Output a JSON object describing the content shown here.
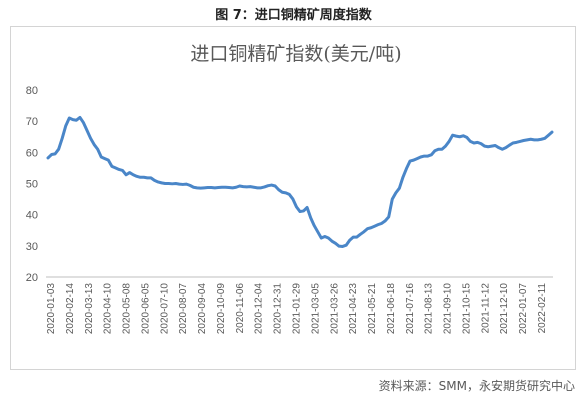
{
  "figure": {
    "caption": "图 7：进口铜精矿周度指数",
    "source": "资料来源：SMM，永安期货研究中心"
  },
  "colors": {
    "line": "#4a86c8",
    "axis": "#bfbfbf"
  },
  "chart_data": {
    "type": "line",
    "title": "进口铜精矿指数(美元/吨)",
    "xlabel": "",
    "ylabel": "",
    "ylim": [
      20,
      80
    ],
    "yticks": [
      20,
      30,
      40,
      50,
      60,
      70,
      80
    ],
    "grid": false,
    "x_tick_labels": [
      "2020-01-03",
      "2020-02-14",
      "2020-03-13",
      "2020-04-10",
      "2020-05-08",
      "2020-06-05",
      "2020-07-10",
      "2020-08-07",
      "2020-09-04",
      "2020-10-09",
      "2020-11-06",
      "2020-12-04",
      "2020-12-31",
      "2021-01-29",
      "2021-03-05",
      "2021-03-26",
      "2021-04-23",
      "2021-05-21",
      "2021-06-18",
      "2021-07-16",
      "2021-08-13",
      "2021-09-10",
      "2021-10-15",
      "2021-11-12",
      "2021-12-10",
      "2022-01-07",
      "2022-02-11"
    ],
    "series": [
      {
        "values": [
          58.2,
          59.3,
          59.5,
          61.0,
          64.5,
          68.5,
          71.0,
          70.5,
          70.3,
          71.2,
          69.5,
          67.0,
          64.5,
          62.5,
          61.0,
          58.5,
          58.0,
          57.5,
          55.5,
          55.0,
          54.5,
          54.2,
          52.8,
          53.5,
          52.8,
          52.3,
          52.0,
          52.0,
          51.8,
          51.8,
          51.0,
          50.5,
          50.2,
          50.0,
          50.0,
          49.9,
          50.0,
          49.8,
          49.7,
          49.8,
          49.4,
          48.8,
          48.6,
          48.5,
          48.6,
          48.7,
          48.7,
          48.6,
          48.7,
          48.8,
          48.8,
          48.7,
          48.6,
          48.8,
          49.2,
          49.0,
          48.9,
          49.0,
          48.8,
          48.6,
          48.6,
          48.9,
          49.3,
          49.5,
          49.2,
          48.0,
          47.2,
          47.0,
          46.5,
          45.0,
          42.5,
          41.0,
          41.2,
          42.3,
          39.0,
          36.5,
          34.5,
          32.5,
          33.0,
          32.5,
          31.5,
          30.8,
          29.9,
          29.8,
          30.2,
          31.8,
          32.8,
          32.8,
          33.7,
          34.5,
          35.5,
          35.8,
          36.3,
          36.8,
          37.2,
          38.0,
          39.3,
          45.0,
          47.0,
          48.5,
          52.0,
          54.8,
          57.2,
          57.5,
          58.0,
          58.5,
          58.8,
          58.8,
          59.2,
          60.5,
          61.0,
          61.0,
          62.0,
          63.5,
          65.5,
          65.2,
          65.0,
          65.3,
          64.8,
          63.5,
          63.0,
          63.2,
          62.8,
          62.0,
          61.8,
          62.0,
          62.2,
          61.5,
          61.0,
          61.5,
          62.3,
          63.0,
          63.2,
          63.5,
          63.8,
          64.0,
          64.2,
          64.0,
          64.0,
          64.2,
          64.5,
          65.5,
          66.5
        ]
      }
    ]
  }
}
